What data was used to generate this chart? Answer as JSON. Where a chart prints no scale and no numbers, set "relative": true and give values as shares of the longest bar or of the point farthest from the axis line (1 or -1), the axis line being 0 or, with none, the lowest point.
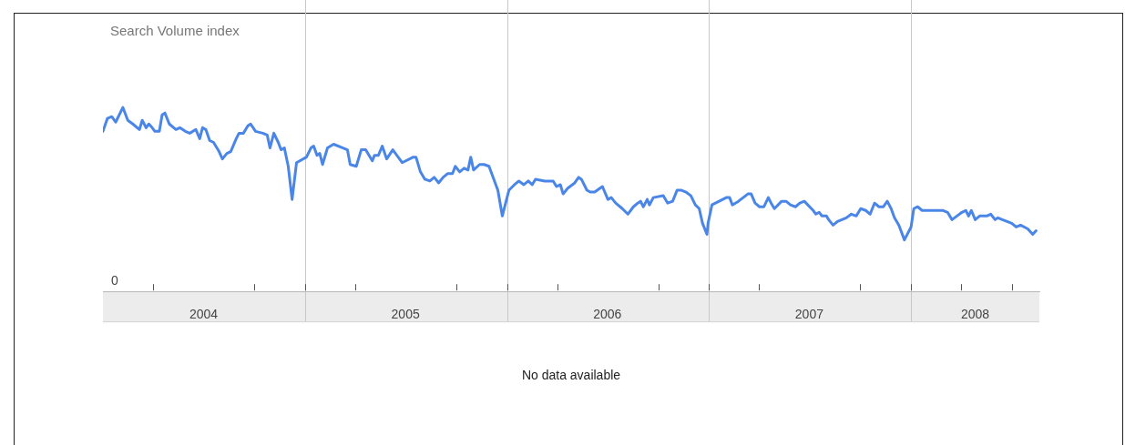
{
  "chart_data": {
    "type": "line",
    "title": "Search Volume index",
    "relative": true,
    "grid": "x",
    "marker": "none",
    "line_style": "solid",
    "xlim": [
      "2004-01-01",
      "2008-08-20"
    ],
    "xticks": [
      {
        "value": "2004-04-01",
        "label": null
      },
      {
        "value": "2004-07-01",
        "label": "2004"
      },
      {
        "value": "2004-10-01",
        "label": null
      },
      {
        "value": "2005-01-01",
        "label": null
      },
      {
        "value": "2005-04-01",
        "label": null
      },
      {
        "value": "2005-07-01",
        "label": "2005"
      },
      {
        "value": "2005-10-01",
        "label": null
      },
      {
        "value": "2006-01-01",
        "label": null
      },
      {
        "value": "2006-04-01",
        "label": null
      },
      {
        "value": "2006-07-01",
        "label": "2006"
      },
      {
        "value": "2006-10-01",
        "label": null
      },
      {
        "value": "2007-01-01",
        "label": null
      },
      {
        "value": "2007-04-01",
        "label": null
      },
      {
        "value": "2007-07-01",
        "label": "2007"
      },
      {
        "value": "2007-10-01",
        "label": null
      },
      {
        "value": "2008-01-01",
        "label": null
      },
      {
        "value": "2008-04-01",
        "label": null
      },
      {
        "value": "2008-04-26",
        "label": "2008"
      },
      {
        "value": "2008-07-01",
        "label": null
      }
    ],
    "annotations": [
      "0",
      "No data available"
    ],
    "series": [
      {
        "color": "#4a86e8",
        "x": [
          "2004-01-01",
          "2004-01-09",
          "2004-01-17",
          "2004-01-24",
          "2004-02-06",
          "2004-02-15",
          "2004-02-24",
          "2004-03-07",
          "2004-03-12",
          "2004-03-19",
          "2004-03-24",
          "2004-03-30",
          "2004-04-04",
          "2004-04-12",
          "2004-04-17",
          "2004-04-22",
          "2004-04-30",
          "2004-05-12",
          "2004-05-19",
          "2004-05-29",
          "2004-06-06",
          "2004-06-17",
          "2004-06-24",
          "2004-06-29",
          "2004-07-05",
          "2004-07-12",
          "2004-07-19",
          "2004-07-29",
          "2004-08-04",
          "2004-08-12",
          "2004-08-19",
          "2004-08-29",
          "2004-09-03",
          "2004-09-11",
          "2004-09-19",
          "2004-09-24",
          "2004-10-03",
          "2004-10-16",
          "2004-10-24",
          "2004-10-29",
          "2004-11-05",
          "2004-11-13",
          "2004-11-18",
          "2004-11-24",
          "2004-12-01",
          "2004-12-08",
          "2004-12-16",
          "2005-01-03",
          "2005-01-11",
          "2005-01-16",
          "2005-01-22",
          "2005-01-27",
          "2005-02-01",
          "2005-02-10",
          "2005-02-21",
          "2005-03-10",
          "2005-03-18",
          "2005-03-23",
          "2005-04-03",
          "2005-04-12",
          "2005-04-20",
          "2005-05-02",
          "2005-05-06",
          "2005-05-13",
          "2005-05-20",
          "2005-05-28",
          "2005-06-08",
          "2005-06-25",
          "2005-07-15",
          "2005-07-20",
          "2005-07-28",
          "2005-08-05",
          "2005-08-14",
          "2005-08-22",
          "2005-08-30",
          "2005-09-07",
          "2005-09-15",
          "2005-09-24",
          "2005-09-29",
          "2005-10-07",
          "2005-10-15",
          "2005-10-22",
          "2005-10-27",
          "2005-11-01",
          "2005-11-12",
          "2005-11-20",
          "2005-11-29",
          "2005-12-15",
          "2005-12-23",
          "2006-01-04",
          "2006-01-14",
          "2006-01-22",
          "2006-01-31",
          "2006-02-08",
          "2006-02-15",
          "2006-02-21",
          "2006-03-10",
          "2006-03-25",
          "2006-03-31",
          "2006-04-07",
          "2006-04-12",
          "2006-04-20",
          "2006-05-03",
          "2006-05-10",
          "2006-05-15",
          "2006-05-25",
          "2006-05-31",
          "2006-06-08",
          "2006-06-22",
          "2006-07-02",
          "2006-07-08",
          "2006-07-16",
          "2006-07-28",
          "2006-08-07",
          "2006-08-17",
          "2006-08-25",
          "2006-08-30",
          "2006-09-04",
          "2006-09-11",
          "2006-09-15",
          "2006-09-22",
          "2006-10-10",
          "2006-10-18",
          "2006-10-27",
          "2006-11-04",
          "2006-11-12",
          "2006-11-20",
          "2006-11-29",
          "2006-12-07",
          "2006-12-14",
          "2006-12-20",
          "2006-12-28",
          "2006-12-30",
          "2007-01-06",
          "2007-01-19",
          "2007-02-01",
          "2007-02-07",
          "2007-02-12",
          "2007-02-23",
          "2007-03-12",
          "2007-03-18",
          "2007-03-25",
          "2007-04-02",
          "2007-04-10",
          "2007-04-18",
          "2007-04-23",
          "2007-04-29",
          "2007-05-12",
          "2007-05-20",
          "2007-05-28",
          "2007-06-06",
          "2007-06-14",
          "2007-06-22",
          "2007-07-08",
          "2007-07-13",
          "2007-07-19",
          "2007-07-24",
          "2007-08-01",
          "2007-08-05",
          "2007-08-13",
          "2007-08-21",
          "2007-09-06",
          "2007-09-15",
          "2007-09-24",
          "2007-10-02",
          "2007-10-11",
          "2007-10-19",
          "2007-10-27",
          "2007-11-04",
          "2007-11-12",
          "2007-11-19",
          "2007-11-26",
          "2007-12-02",
          "2007-12-10",
          "2007-12-20",
          "2008-01-01",
          "2008-01-06",
          "2008-01-13",
          "2008-01-21",
          "2008-02-20",
          "2008-02-28",
          "2008-03-07",
          "2008-03-15",
          "2008-03-24",
          "2008-04-02",
          "2008-04-09",
          "2008-04-14",
          "2008-04-19",
          "2008-04-26",
          "2008-05-04",
          "2008-05-17",
          "2008-05-24",
          "2008-06-01",
          "2008-06-06",
          "2008-06-14",
          "2008-07-01",
          "2008-07-09",
          "2008-07-17",
          "2008-07-30",
          "2008-08-08",
          "2008-08-14"
        ],
        "values": [
          0.87,
          0.94,
          0.95,
          0.92,
          1.0,
          0.93,
          0.91,
          0.88,
          0.93,
          0.89,
          0.91,
          0.89,
          0.87,
          0.87,
          0.96,
          0.97,
          0.91,
          0.88,
          0.89,
          0.87,
          0.86,
          0.88,
          0.83,
          0.89,
          0.88,
          0.82,
          0.81,
          0.76,
          0.72,
          0.75,
          0.76,
          0.83,
          0.86,
          0.86,
          0.9,
          0.91,
          0.87,
          0.86,
          0.85,
          0.78,
          0.86,
          0.81,
          0.77,
          0.78,
          0.68,
          0.5,
          0.7,
          0.73,
          0.78,
          0.79,
          0.74,
          0.75,
          0.69,
          0.78,
          0.8,
          0.78,
          0.77,
          0.69,
          0.68,
          0.77,
          0.77,
          0.71,
          0.74,
          0.74,
          0.79,
          0.72,
          0.77,
          0.7,
          0.73,
          0.73,
          0.65,
          0.61,
          0.6,
          0.62,
          0.59,
          0.62,
          0.64,
          0.64,
          0.68,
          0.65,
          0.67,
          0.66,
          0.73,
          0.66,
          0.69,
          0.69,
          0.68,
          0.55,
          0.41,
          0.55,
          0.58,
          0.6,
          0.58,
          0.6,
          0.58,
          0.61,
          0.6,
          0.6,
          0.57,
          0.58,
          0.53,
          0.56,
          0.59,
          0.62,
          0.61,
          0.55,
          0.54,
          0.54,
          0.57,
          0.5,
          0.51,
          0.48,
          0.45,
          0.42,
          0.46,
          0.48,
          0.49,
          0.46,
          0.5,
          0.47,
          0.51,
          0.52,
          0.48,
          0.49,
          0.55,
          0.55,
          0.54,
          0.52,
          0.47,
          0.45,
          0.37,
          0.31,
          0.37,
          0.47,
          0.49,
          0.51,
          0.51,
          0.47,
          0.49,
          0.53,
          0.53,
          0.48,
          0.46,
          0.46,
          0.51,
          0.48,
          0.45,
          0.49,
          0.49,
          0.47,
          0.46,
          0.48,
          0.49,
          0.44,
          0.42,
          0.43,
          0.41,
          0.41,
          0.39,
          0.36,
          0.38,
          0.4,
          0.42,
          0.41,
          0.45,
          0.44,
          0.42,
          0.48,
          0.46,
          0.46,
          0.49,
          0.45,
          0.4,
          0.36,
          0.28,
          0.35,
          0.45,
          0.46,
          0.44,
          0.44,
          0.44,
          0.43,
          0.39,
          0.41,
          0.43,
          0.44,
          0.41,
          0.44,
          0.39,
          0.41,
          0.41,
          0.42,
          0.39,
          0.4,
          0.39,
          0.37,
          0.35,
          0.36,
          0.34,
          0.31,
          0.33
        ]
      }
    ]
  }
}
